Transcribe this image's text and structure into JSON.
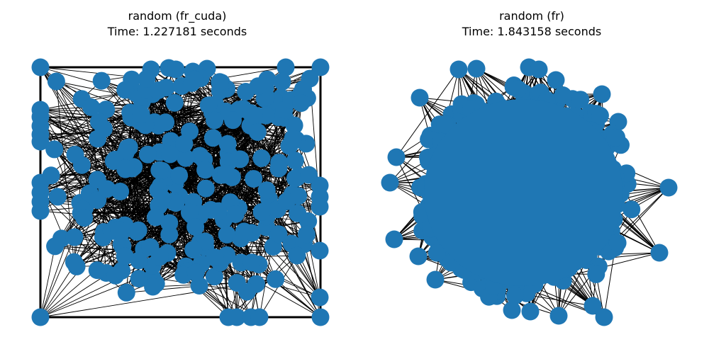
{
  "panels": [
    {
      "title": "random (fr_cuda)",
      "subtitle": "Time: 1.227181 seconds",
      "layout": "square",
      "node_color": "#1f77b4",
      "edge_color": "#000000"
    },
    {
      "title": "random (fr)",
      "subtitle": "Time: 1.843158 seconds",
      "layout": "disc",
      "node_color": "#1f77b4",
      "edge_color": "#000000"
    }
  ]
}
